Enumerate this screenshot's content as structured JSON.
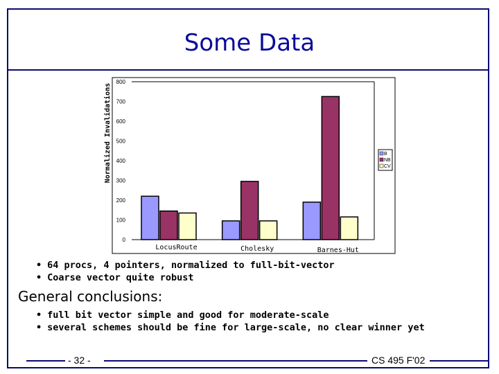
{
  "slide": {
    "title": "Some Data",
    "bullets": [
      "64 procs, 4 pointers, normalized to full-bit-vector",
      "Coarse vector quite robust"
    ],
    "heading": "General conclusions:",
    "conclusions": [
      "full bit vector simple and good for moderate-scale",
      "several schemes should be fine for large-scale, no clear winner yet"
    ],
    "page_number": "- 32 -",
    "course": "CS 495 F'02"
  },
  "chart_data": {
    "type": "bar",
    "ylabel": "Normalized Invalidations",
    "xlabel": "",
    "ylim": [
      0,
      800
    ],
    "yticks": [
      0,
      100,
      200,
      300,
      400,
      500,
      600,
      700,
      800
    ],
    "categories": [
      "LocusRoute",
      "Cholesky",
      "Barnes-Hut"
    ],
    "series": [
      {
        "name": "B",
        "values": [
          220,
          95,
          190
        ],
        "color": "#9999ff"
      },
      {
        "name": "NB",
        "values": [
          145,
          295,
          725
        ],
        "color": "#993366"
      },
      {
        "name": "CV",
        "values": [
          135,
          95,
          115
        ],
        "color": "#ffffcc"
      }
    ],
    "legend": "right",
    "grid": false
  }
}
